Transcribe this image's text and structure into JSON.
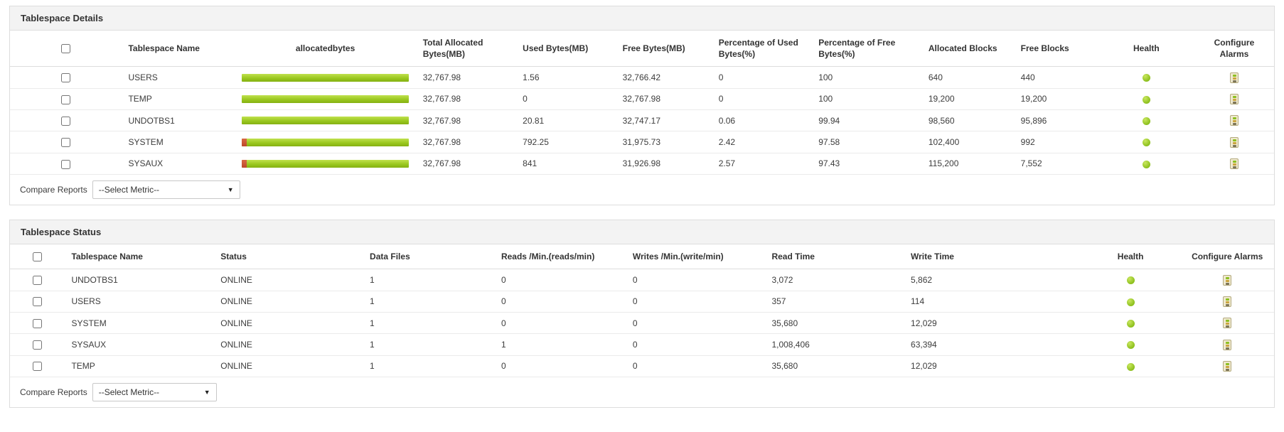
{
  "colors": {
    "bar_green": "#9ac81f",
    "bar_red": "#bc472a",
    "health_green": "#8cbf1d",
    "panel_header_bg": "#f3f3f3",
    "border": "#dddddd"
  },
  "panels": [
    {
      "id": "tablespace-details",
      "title": "Tablespace Details",
      "columns": [
        {
          "key": "select",
          "label": "",
          "type": "checkbox"
        },
        {
          "key": "name",
          "label": "Tablespace Name",
          "type": "text"
        },
        {
          "key": "bar",
          "label": "allocatedbytes",
          "type": "bar"
        },
        {
          "key": "total",
          "label": "Total Allocated Bytes(MB)",
          "type": "text"
        },
        {
          "key": "used",
          "label": "Used Bytes(MB)",
          "type": "text"
        },
        {
          "key": "free",
          "label": "Free Bytes(MB)",
          "type": "text"
        },
        {
          "key": "pct_used",
          "label": "Percentage of Used Bytes(%)",
          "type": "text"
        },
        {
          "key": "pct_free",
          "label": "Percentage of Free Bytes(%)",
          "type": "text"
        },
        {
          "key": "alloc_blocks",
          "label": "Allocated Blocks",
          "type": "text"
        },
        {
          "key": "free_blocks",
          "label": "Free Blocks",
          "type": "text"
        },
        {
          "key": "health",
          "label": "Health",
          "type": "health"
        },
        {
          "key": "configure",
          "label": "Configure Alarms",
          "type": "alarm"
        }
      ],
      "rows": [
        {
          "name": "USERS",
          "used_pct": 0,
          "total": "32,767.98",
          "used": "1.56",
          "free": "32,766.42",
          "pct_used": "0",
          "pct_free": "100",
          "alloc_blocks": "640",
          "free_blocks": "440",
          "health": "green"
        },
        {
          "name": "TEMP",
          "used_pct": 0,
          "total": "32,767.98",
          "used": "0",
          "free": "32,767.98",
          "pct_used": "0",
          "pct_free": "100",
          "alloc_blocks": "19,200",
          "free_blocks": "19,200",
          "health": "green"
        },
        {
          "name": "UNDOTBS1",
          "used_pct": 0.06,
          "total": "32,767.98",
          "used": "20.81",
          "free": "32,747.17",
          "pct_used": "0.06",
          "pct_free": "99.94",
          "alloc_blocks": "98,560",
          "free_blocks": "95,896",
          "health": "green"
        },
        {
          "name": "SYSTEM",
          "used_pct": 2.42,
          "total": "32,767.98",
          "used": "792.25",
          "free": "31,975.73",
          "pct_used": "2.42",
          "pct_free": "97.58",
          "alloc_blocks": "102,400",
          "free_blocks": "992",
          "health": "green"
        },
        {
          "name": "SYSAUX",
          "used_pct": 2.57,
          "total": "32,767.98",
          "used": "841",
          "free": "31,926.98",
          "pct_used": "2.57",
          "pct_free": "97.43",
          "alloc_blocks": "115,200",
          "free_blocks": "7,552",
          "health": "green"
        }
      ],
      "footer": {
        "label": "Compare Reports",
        "select_value": "--Select Metric--"
      }
    },
    {
      "id": "tablespace-status",
      "title": "Tablespace Status",
      "columns": [
        {
          "key": "select",
          "label": "",
          "type": "checkbox"
        },
        {
          "key": "name",
          "label": "Tablespace Name",
          "type": "text"
        },
        {
          "key": "status",
          "label": "Status",
          "type": "text"
        },
        {
          "key": "data_files",
          "label": "Data Files",
          "type": "text"
        },
        {
          "key": "reads",
          "label": "Reads /Min.(reads/min)",
          "type": "text"
        },
        {
          "key": "writes",
          "label": "Writes /Min.(write/min)",
          "type": "text"
        },
        {
          "key": "read_time",
          "label": "Read Time",
          "type": "text"
        },
        {
          "key": "write_time",
          "label": "Write Time",
          "type": "text"
        },
        {
          "key": "health",
          "label": "Health",
          "type": "health"
        },
        {
          "key": "configure",
          "label": "Configure Alarms",
          "type": "alarm"
        }
      ],
      "rows": [
        {
          "name": "UNDOTBS1",
          "status": "ONLINE",
          "data_files": "1",
          "reads": "0",
          "writes": "0",
          "read_time": "3,072",
          "write_time": "5,862",
          "health": "green"
        },
        {
          "name": "USERS",
          "status": "ONLINE",
          "data_files": "1",
          "reads": "0",
          "writes": "0",
          "read_time": "357",
          "write_time": "114",
          "health": "green"
        },
        {
          "name": "SYSTEM",
          "status": "ONLINE",
          "data_files": "1",
          "reads": "0",
          "writes": "0",
          "read_time": "35,680",
          "write_time": "12,029",
          "health": "green"
        },
        {
          "name": "SYSAUX",
          "status": "ONLINE",
          "data_files": "1",
          "reads": "1",
          "writes": "0",
          "read_time": "1,008,406",
          "write_time": "63,394",
          "health": "green"
        },
        {
          "name": "TEMP",
          "status": "ONLINE",
          "data_files": "1",
          "reads": "0",
          "writes": "0",
          "read_time": "35,680",
          "write_time": "12,029",
          "health": "green"
        }
      ],
      "footer": {
        "label": "Compare Reports",
        "select_value": "--Select Metric--"
      }
    }
  ]
}
